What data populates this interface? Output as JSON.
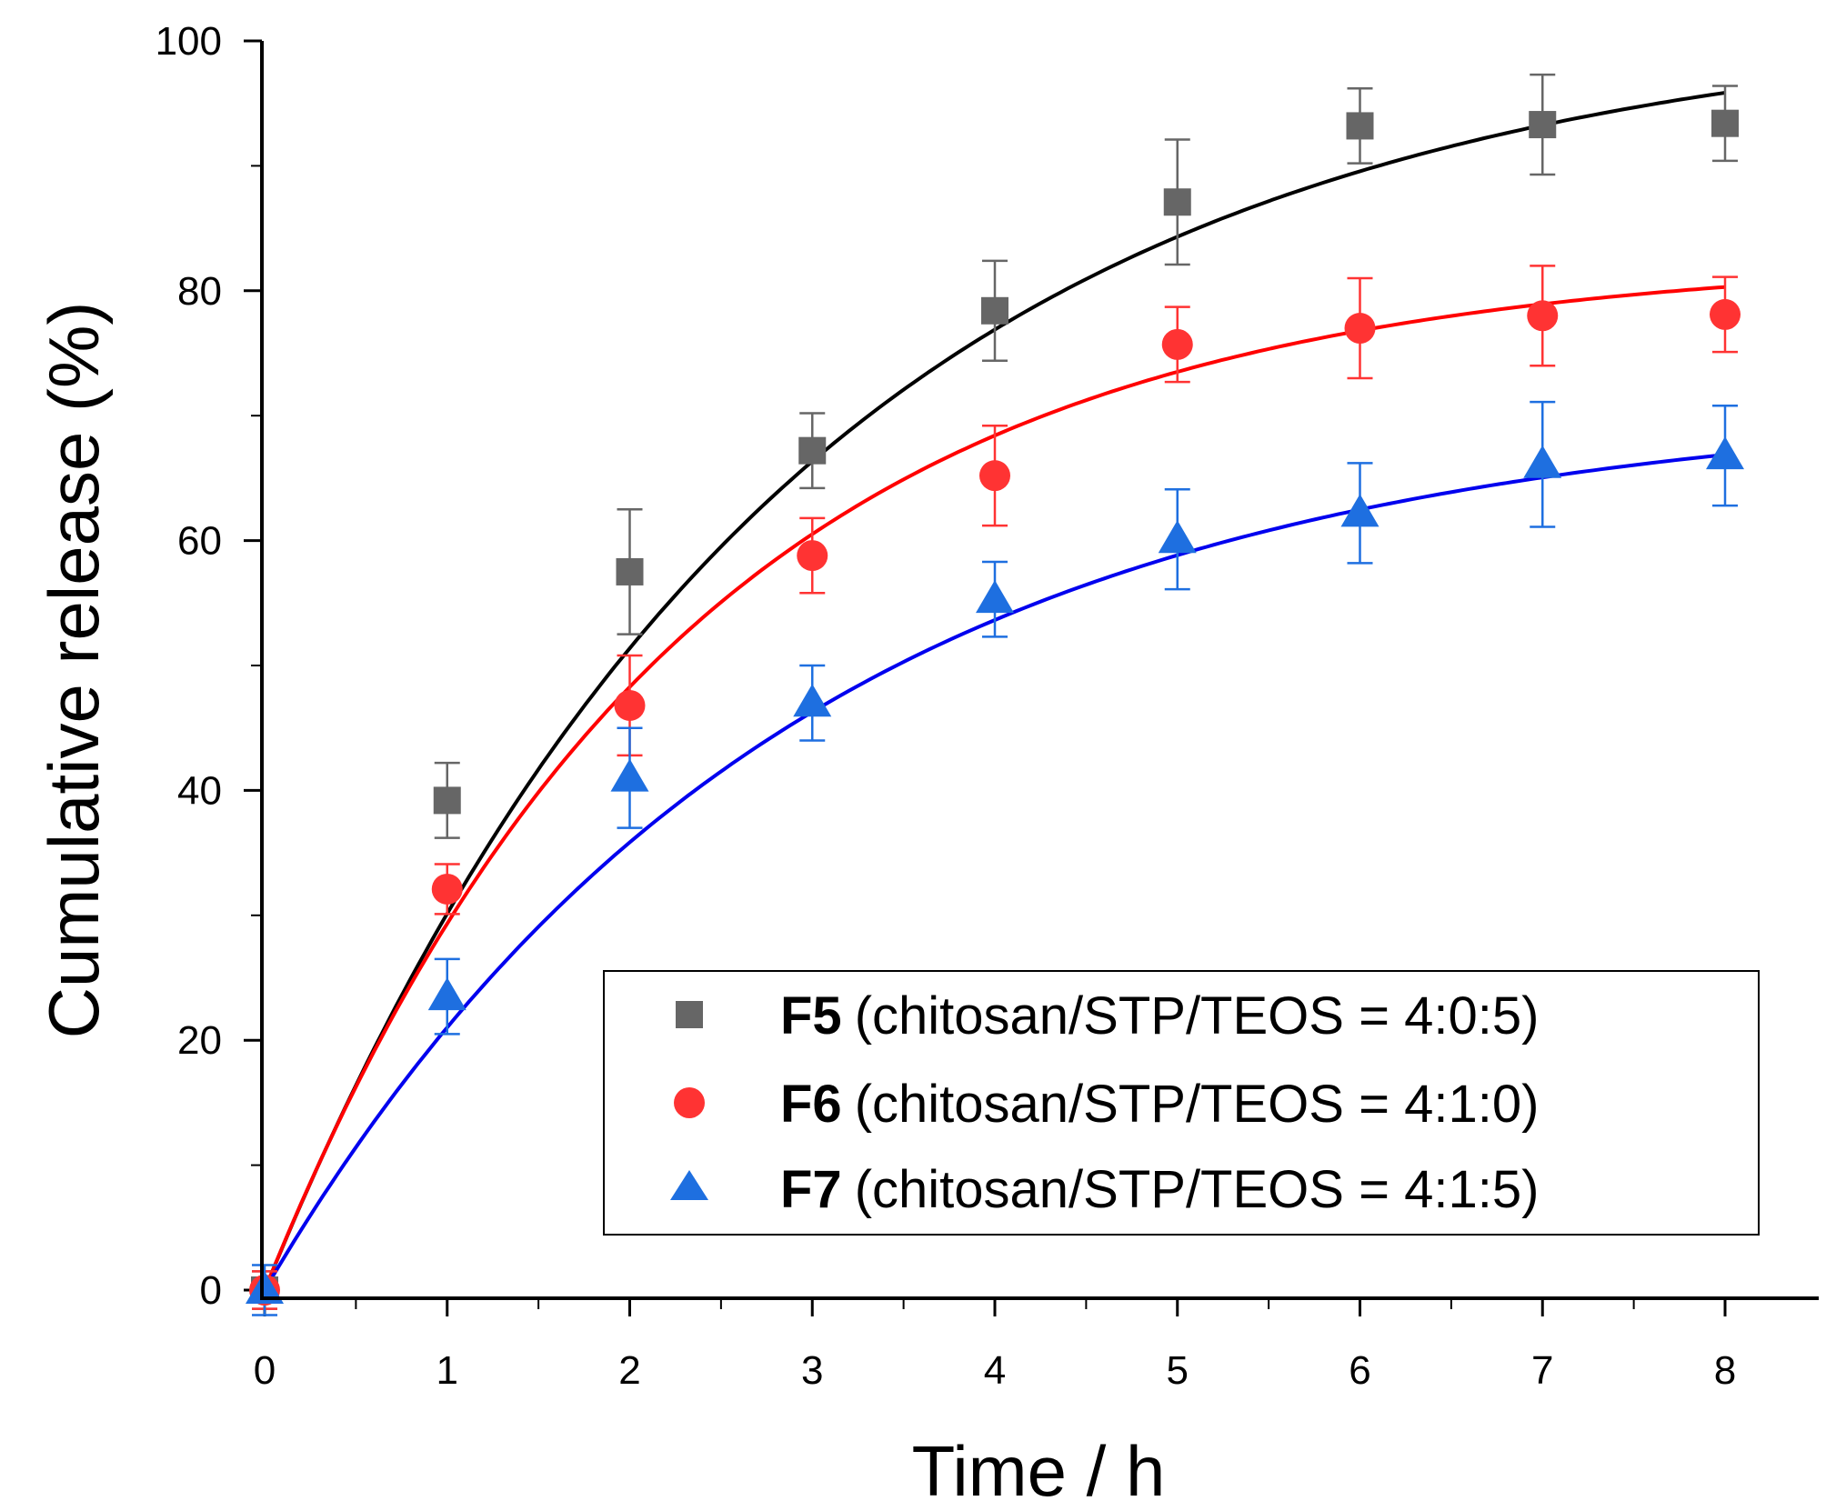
{
  "chart_data": {
    "type": "scatter",
    "xlabel": "Time / h",
    "ylabel": "Cumulative release (%)",
    "xlim": [
      0,
      8
    ],
    "ylim": [
      0,
      100
    ],
    "x_ticks": [
      "0",
      "1",
      "2",
      "3",
      "4",
      "5",
      "6",
      "7",
      "8"
    ],
    "y_ticks": [
      "0",
      "20",
      "40",
      "60",
      "80",
      "100"
    ],
    "legend_position": "bottom-right",
    "grid": false,
    "series": [
      {
        "name": "F5",
        "legend_label": "(chitosan/STP/TEOS = 4:0:5)",
        "marker": "square",
        "marker_color": "#666666",
        "fit_color": "#000000",
        "x": [
          0,
          1,
          2,
          3,
          4,
          5,
          6,
          7,
          8
        ],
        "y": [
          0,
          39.2,
          57.5,
          67.2,
          78.4,
          87.1,
          93.2,
          93.3,
          93.4
        ],
        "error": [
          1.5,
          3.0,
          5.0,
          3.0,
          4.0,
          5.0,
          3.0,
          4.0,
          3.0
        ],
        "fit": {
          "model": "exponential",
          "a": 102.06,
          "k": 0.35
        }
      },
      {
        "name": "F6",
        "legend_label": "(chitosan/STP/TEOS = 4:1:0)",
        "marker": "circle",
        "marker_color": "#ff3333",
        "fit_color": "#ff0000",
        "x": [
          0,
          1,
          2,
          3,
          4,
          5,
          6,
          7,
          8
        ],
        "y": [
          0,
          32.1,
          46.8,
          58.8,
          65.2,
          75.7,
          77.0,
          78.0,
          78.1
        ],
        "error": [
          1.5,
          2.0,
          4.0,
          3.0,
          4.0,
          3.0,
          4.0,
          4.0,
          3.0
        ],
        "fit": {
          "model": "exponential",
          "a": 82.8,
          "k": 0.4375
        }
      },
      {
        "name": "F7",
        "legend_label": "(chitosan/STP/TEOS = 4:1:5)",
        "marker": "triangle",
        "marker_color": "#1e6fe0",
        "fit_color": "#0000ee",
        "x": [
          0,
          1,
          2,
          3,
          4,
          5,
          6,
          7,
          8
        ],
        "y": [
          0,
          23.5,
          41.0,
          47.0,
          55.3,
          60.1,
          62.2,
          66.1,
          66.8
        ],
        "error": [
          2.0,
          3.0,
          4.0,
          3.0,
          3.0,
          4.0,
          4.0,
          5.0,
          4.0
        ],
        "fit": {
          "model": "exponential",
          "a": 71.2,
          "k": 0.35
        }
      }
    ]
  }
}
